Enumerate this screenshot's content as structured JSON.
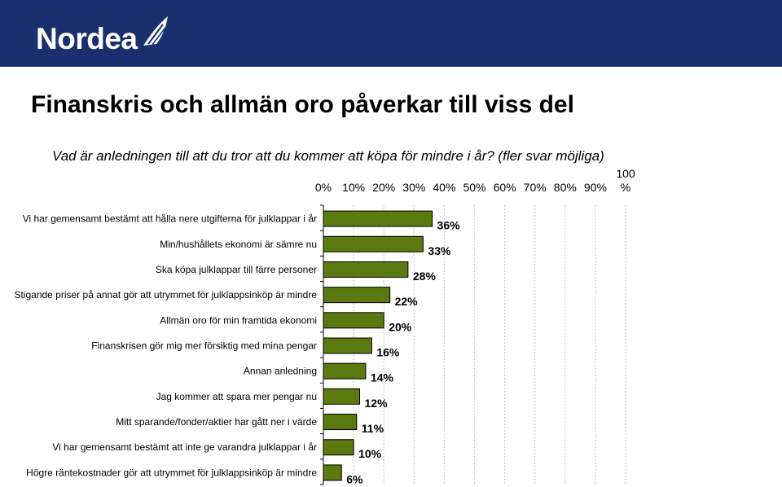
{
  "header": {
    "logo_text": "Nordea",
    "brand_color": "#1a2f6e",
    "logo_icon": "sail-icon"
  },
  "slide": {
    "title": "Finanskris och allmän oro påverkar till viss del",
    "subtitle": "Vad är anledningen till att du tror att du kommer att köpa för mindre i år? (fler svar möjliga)"
  },
  "chart_data": {
    "type": "bar",
    "orientation": "horizontal",
    "title": "",
    "xlabel": "",
    "ylabel": "",
    "xlim": [
      0,
      100
    ],
    "tick_labels": [
      "0%",
      "10%",
      "20%",
      "30%",
      "40%",
      "50%",
      "60%",
      "70%",
      "80%",
      "90%",
      "100 %"
    ],
    "categories": [
      "Vi har gemensamt bestämt att hålla nere utgifterna för julklappar i år",
      "Min/hushållets ekonomi är sämre nu",
      "Ska köpa julklappar till färre personer",
      "Stigande priser på annat gör att utrymmet för julklappsinköp är mindre",
      "Allmän oro för min framtida ekonomi",
      "Finanskrisen gör mig mer försiktig med mina pengar",
      "Annan anledning",
      "Jag kommer att spara mer pengar nu",
      "Mitt sparande/fonder/aktier har gått ner i värde",
      "Vi har gemensamt bestämt att inte ge varandra julklappar i år",
      "Högre räntekostnader gör att utrymmet för julklappsinköp är mindre"
    ],
    "values": [
      36,
      33,
      28,
      22,
      20,
      16,
      14,
      12,
      11,
      10,
      6
    ],
    "data_labels": [
      "36%",
      "33%",
      "28%",
      "22%",
      "20%",
      "16%",
      "14%",
      "12%",
      "11%",
      "10%",
      "6%"
    ],
    "bar_color": "#5a7a10",
    "grid": true,
    "legend": "none"
  }
}
